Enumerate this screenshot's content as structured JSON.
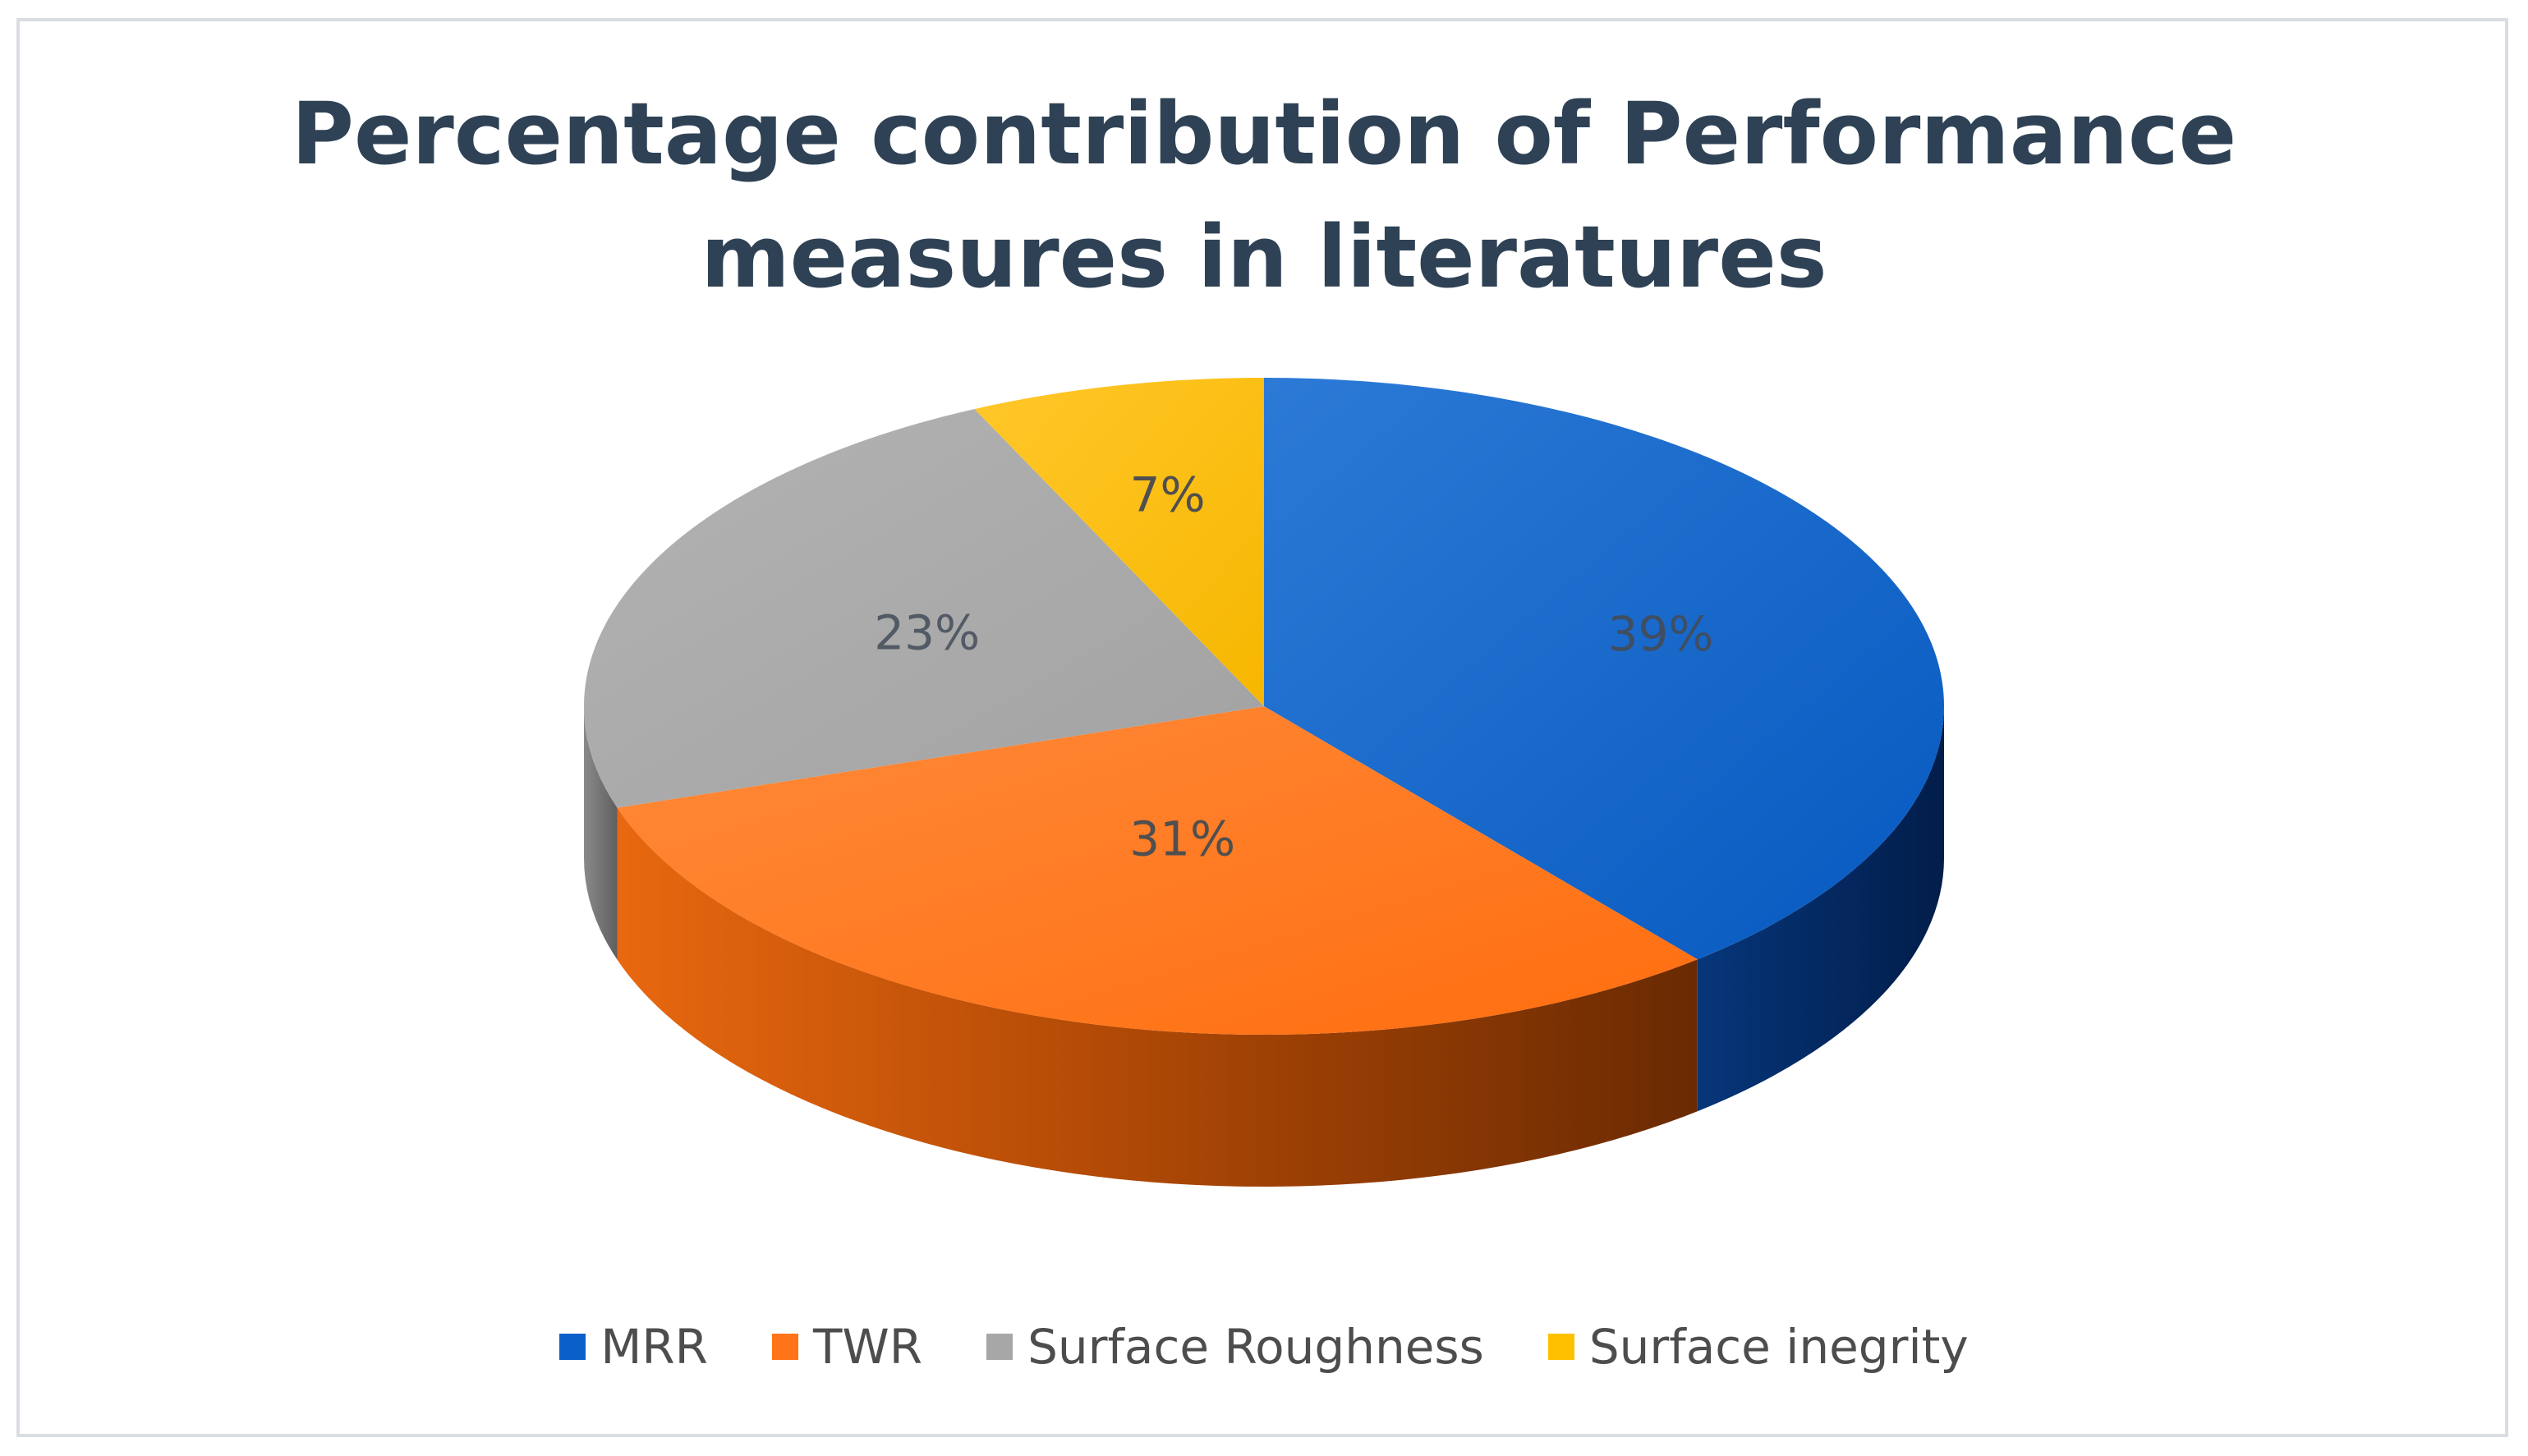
{
  "chart_data": {
    "type": "pie",
    "title_lines": [
      "Percentage contribution of Performance",
      "measures in literatures"
    ],
    "slices": [
      {
        "name": "MRR",
        "value": 39,
        "label": "39%",
        "color": "#0a60c8",
        "label_color": "#3f4e62"
      },
      {
        "name": "TWR",
        "value": 31,
        "label": "31%",
        "color": "#ff7418",
        "label_color": "#4f4f4f"
      },
      {
        "name": "Surface Roughness",
        "value": 23,
        "label": "23%",
        "color": "#a7a7a7",
        "label_color": "#525a66"
      },
      {
        "name": "Surface inegrity",
        "value": 7,
        "label": "7%",
        "color": "#ffc000",
        "label_color": "#4f4f4f"
      }
    ],
    "style": "3d-pie",
    "legend_position": "bottom"
  }
}
